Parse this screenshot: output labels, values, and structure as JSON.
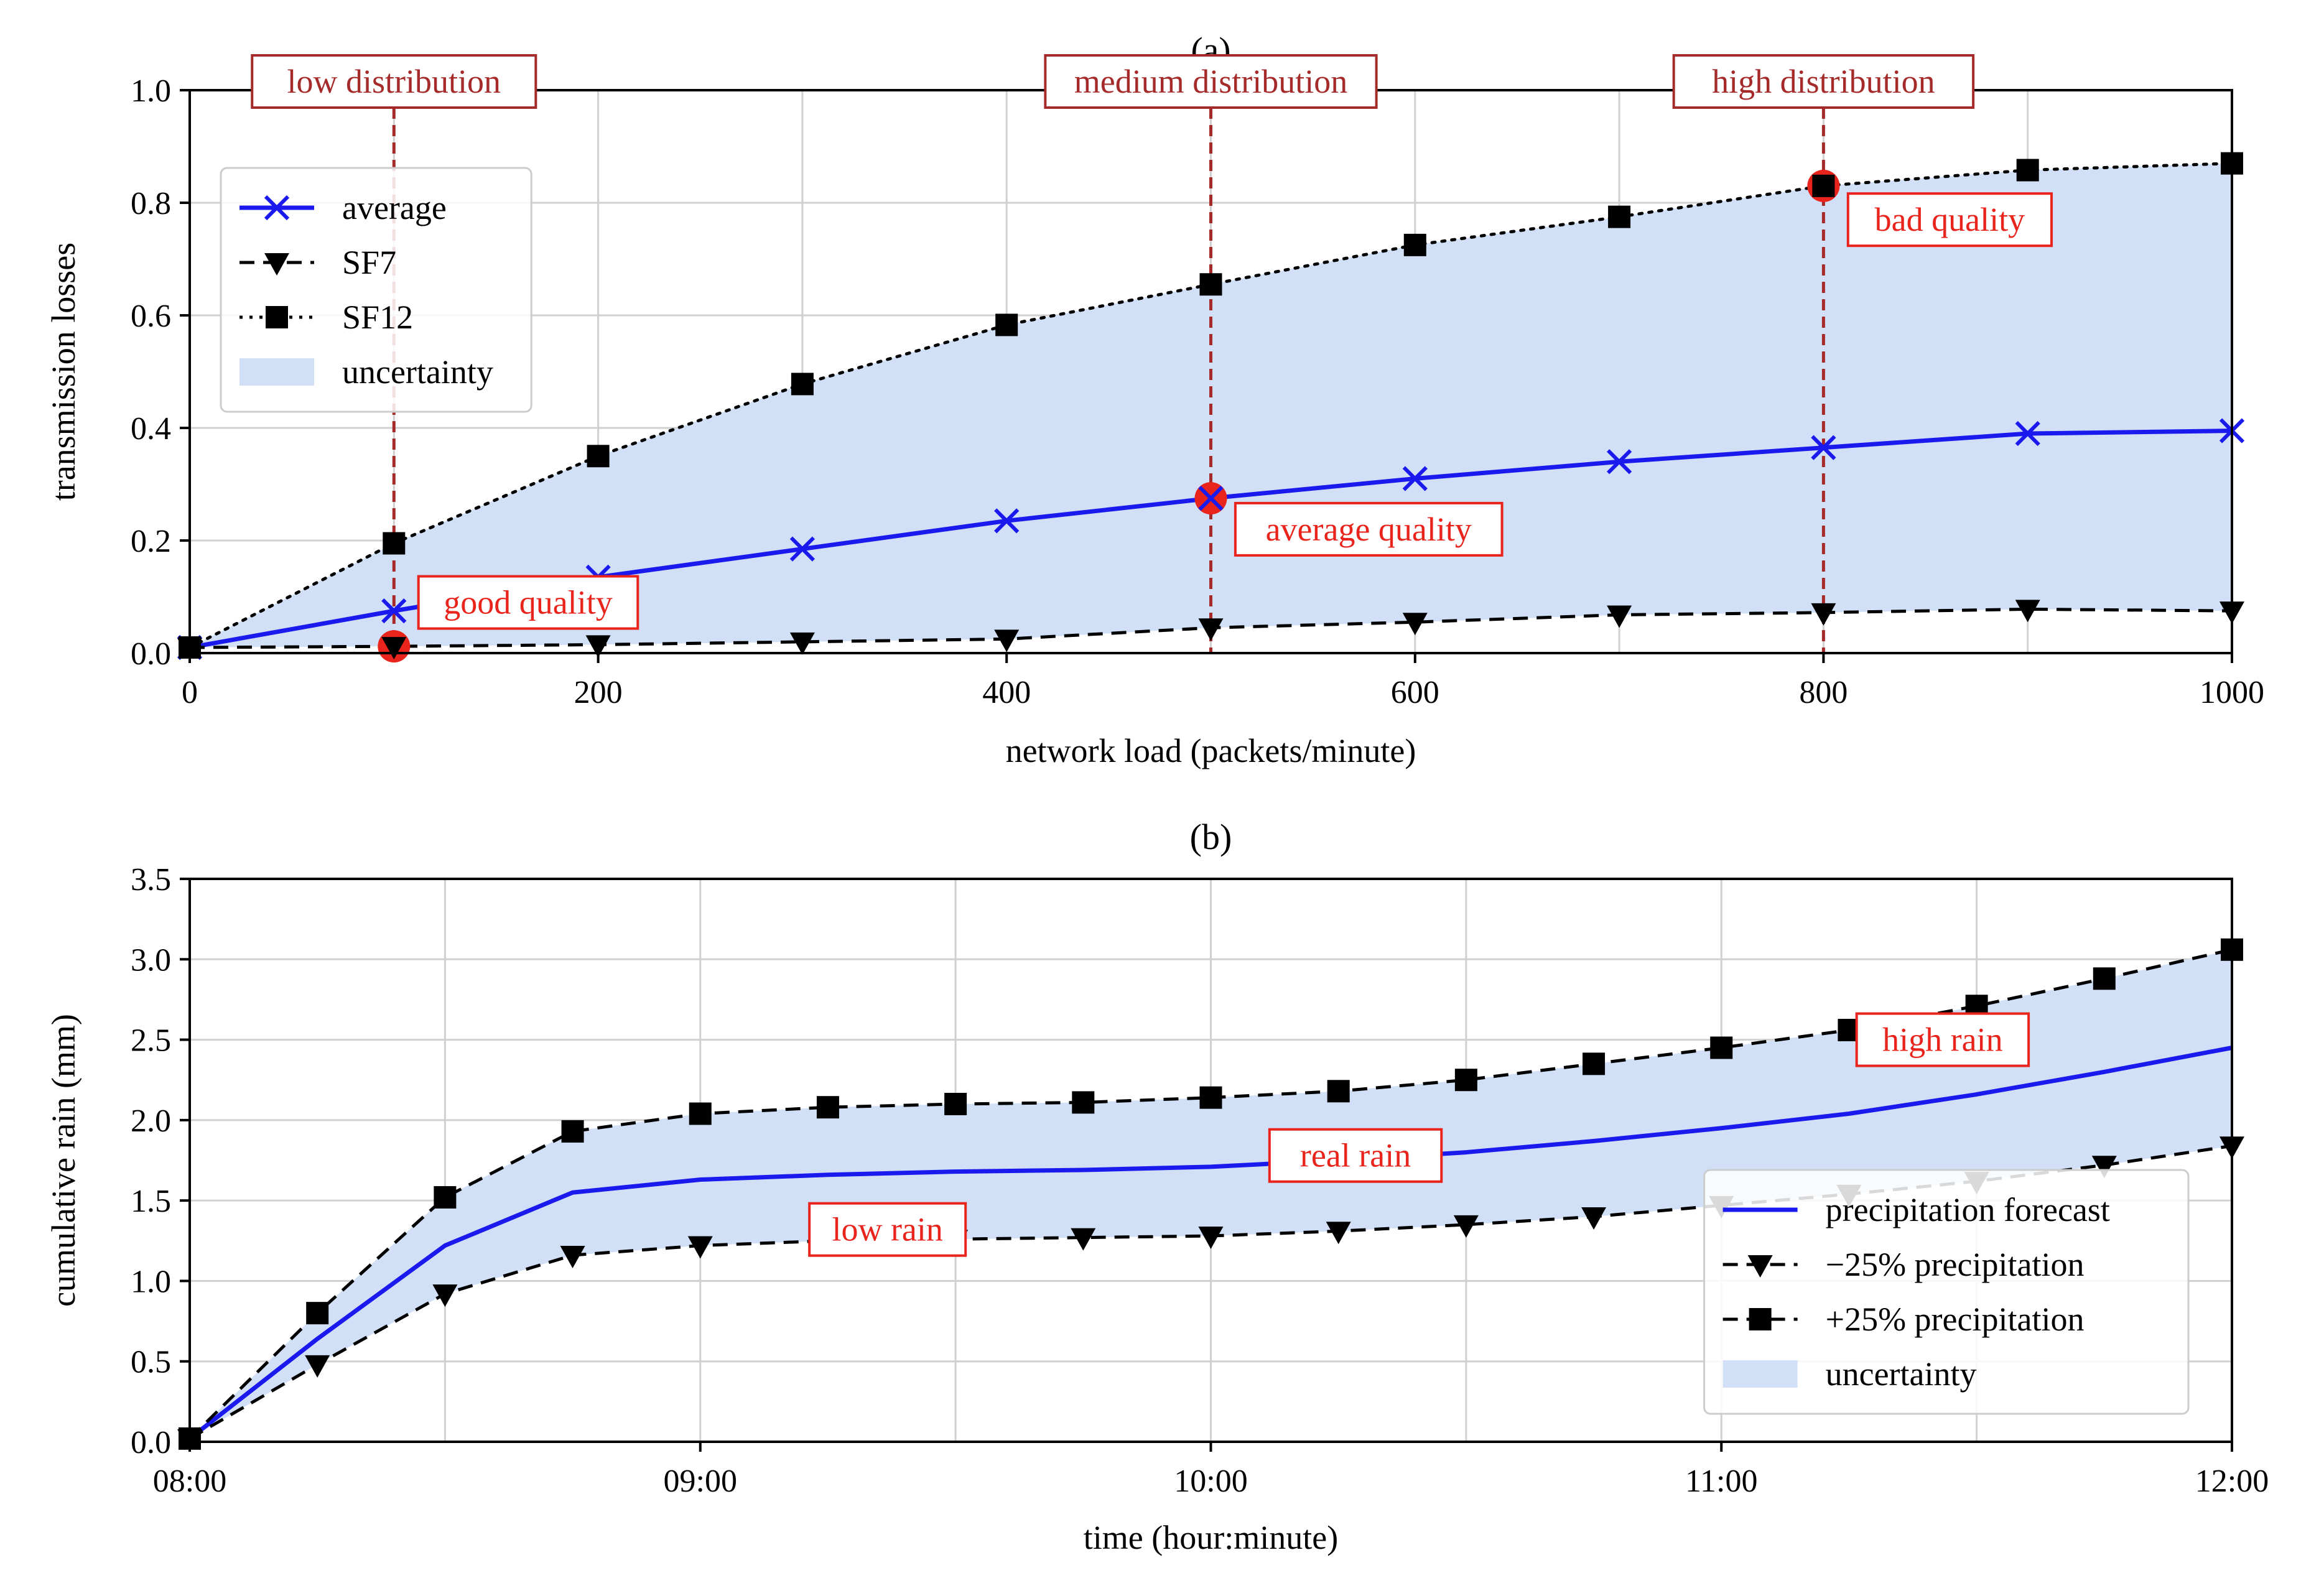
{
  "chart_data": [
    {
      "id": "a",
      "type": "line",
      "title": "(a)",
      "xlabel": "network load (packets/minute)",
      "ylabel": "transmission losses",
      "xlim": [
        0,
        1000
      ],
      "ylim": [
        0,
        1.0
      ],
      "x_ticks": [
        0,
        200,
        400,
        600,
        800,
        1000
      ],
      "x_tick_labels": [
        "0",
        "200",
        "400",
        "600",
        "800",
        "1000"
      ],
      "y_ticks": [
        0,
        0.2,
        0.4,
        0.6,
        0.8,
        1.0
      ],
      "y_tick_labels": [
        "0.0",
        "0.2",
        "0.4",
        "0.6",
        "0.8",
        "1.0"
      ],
      "grid_x": [
        0,
        100,
        200,
        300,
        400,
        500,
        600,
        700,
        800,
        900,
        1000
      ],
      "grid_y": [
        0,
        0.2,
        0.4,
        0.6,
        0.8,
        1.0
      ],
      "x": [
        0,
        100,
        200,
        300,
        400,
        500,
        600,
        700,
        800,
        900,
        1000
      ],
      "series": [
        {
          "name": "average",
          "style": "solid",
          "marker": "x",
          "color": "#1a1aee",
          "values": [
            0.01,
            0.075,
            0.135,
            0.185,
            0.235,
            0.275,
            0.31,
            0.34,
            0.365,
            0.39,
            0.395
          ]
        },
        {
          "name": "SF7",
          "style": "dashed",
          "marker": "v",
          "color": "#000000",
          "values": [
            0.01,
            0.012,
            0.015,
            0.02,
            0.025,
            0.045,
            0.055,
            0.068,
            0.072,
            0.078,
            0.075
          ]
        },
        {
          "name": "SF12",
          "style": "dotted",
          "marker": "s",
          "color": "#000000",
          "values": [
            0.01,
            0.195,
            0.35,
            0.478,
            0.583,
            0.655,
            0.725,
            0.775,
            0.83,
            0.858,
            0.87
          ]
        }
      ],
      "band": {
        "name": "uncertainty",
        "lower": "SF7",
        "upper": "SF12",
        "color": "#d2e0f7"
      },
      "legend": {
        "position": "top-left",
        "entries": [
          {
            "label": "average",
            "kind": "line",
            "style": "solid",
            "marker": "x",
            "color": "#1a1aee"
          },
          {
            "label": "SF7",
            "kind": "line",
            "style": "dashed",
            "marker": "v",
            "color": "#000000"
          },
          {
            "label": "SF12",
            "kind": "line",
            "style": "dotted",
            "marker": "s",
            "color": "#000000"
          },
          {
            "label": "uncertainty",
            "kind": "patch",
            "color": "#d2e0f7"
          }
        ]
      },
      "vlines": [
        {
          "x": 100,
          "label": "low distribution",
          "color": "#a52a2a"
        },
        {
          "x": 500,
          "label": "medium distribution",
          "color": "#a52a2a"
        },
        {
          "x": 800,
          "label": "high distribution",
          "color": "#a52a2a"
        }
      ],
      "highlights": [
        {
          "x": 100,
          "y": 0.012,
          "color": "#e8241c"
        },
        {
          "x": 500,
          "y": 0.275,
          "color": "#e8241c"
        },
        {
          "x": 800,
          "y": 0.83,
          "color": "#e8241c"
        }
      ],
      "annotations": [
        {
          "text": "good quality",
          "x": 112,
          "y": 0.09,
          "anchor": "start",
          "color": "#e8241c"
        },
        {
          "text": "average quality",
          "x": 512,
          "y": 0.22,
          "anchor": "start",
          "color": "#e8241c"
        },
        {
          "text": "bad quality",
          "x": 812,
          "y": 0.77,
          "anchor": "start",
          "color": "#e8241c"
        }
      ]
    },
    {
      "id": "b",
      "type": "line",
      "title": "(b)",
      "xlabel": "time (hour:minute)",
      "ylabel": "cumulative rain (mm)",
      "xlim": [
        0,
        240
      ],
      "ylim": [
        0,
        3.5
      ],
      "x_ticks": [
        0,
        60,
        120,
        180,
        240
      ],
      "x_tick_labels": [
        "08:00",
        "09:00",
        "10:00",
        "11:00",
        "12:00"
      ],
      "y_ticks": [
        0,
        0.5,
        1.0,
        1.5,
        2.0,
        2.5,
        3.0,
        3.5
      ],
      "y_tick_labels": [
        "0.0",
        "0.5",
        "1.0",
        "1.5",
        "2.0",
        "2.5",
        "3.0",
        "3.5"
      ],
      "grid_x": [
        0,
        30,
        60,
        90,
        120,
        150,
        180,
        210,
        240
      ],
      "grid_y": [
        0,
        0.5,
        1.0,
        1.5,
        2.0,
        2.5,
        3.0,
        3.5
      ],
      "x": [
        0,
        15,
        30,
        45,
        60,
        75,
        90,
        105,
        120,
        135,
        150,
        165,
        180,
        195,
        210,
        225,
        240
      ],
      "series": [
        {
          "name": "precipitation forecast",
          "style": "solid",
          "marker": "none",
          "color": "#1a1aee",
          "values": [
            0.02,
            0.64,
            1.22,
            1.55,
            1.63,
            1.66,
            1.68,
            1.69,
            1.71,
            1.75,
            1.8,
            1.87,
            1.95,
            2.04,
            2.16,
            2.3,
            2.45
          ]
        },
        {
          "name": "−25% precipitation",
          "style": "dashed",
          "marker": "v",
          "color": "#000000",
          "values": [
            0.02,
            0.48,
            0.92,
            1.16,
            1.22,
            1.25,
            1.26,
            1.27,
            1.28,
            1.31,
            1.35,
            1.4,
            1.47,
            1.54,
            1.62,
            1.72,
            1.84
          ]
        },
        {
          "name": "+25% precipitation",
          "style": "dashed",
          "marker": "s",
          "color": "#000000",
          "values": [
            0.02,
            0.8,
            1.52,
            1.93,
            2.04,
            2.08,
            2.1,
            2.11,
            2.14,
            2.18,
            2.25,
            2.35,
            2.45,
            2.56,
            2.71,
            2.88,
            3.06
          ]
        }
      ],
      "band": {
        "name": "uncertainty",
        "lower": "−25% precipitation",
        "upper": "+25% precipitation",
        "color": "#d2e0f7"
      },
      "legend": {
        "position": "lower-right",
        "entries": [
          {
            "label": "precipitation forecast",
            "kind": "line",
            "style": "solid",
            "marker": "none",
            "color": "#1a1aee"
          },
          {
            "label": "−25% precipitation",
            "kind": "line",
            "style": "dashed",
            "marker": "v",
            "color": "#000000"
          },
          {
            "label": "+25% precipitation",
            "kind": "line",
            "style": "dashed",
            "marker": "s",
            "color": "#000000"
          },
          {
            "label": "uncertainty",
            "kind": "patch",
            "color": "#d2e0f7"
          }
        ]
      },
      "vlines": [],
      "highlights": [],
      "annotations": [
        {
          "text": "high rain",
          "x": 206,
          "y": 2.5,
          "anchor": "middle",
          "color": "#e8241c"
        },
        {
          "text": "real rain",
          "x": 137,
          "y": 1.78,
          "anchor": "middle",
          "color": "#e8241c"
        },
        {
          "text": "low rain",
          "x": 82,
          "y": 1.32,
          "anchor": "middle",
          "color": "#e8241c"
        }
      ]
    }
  ]
}
